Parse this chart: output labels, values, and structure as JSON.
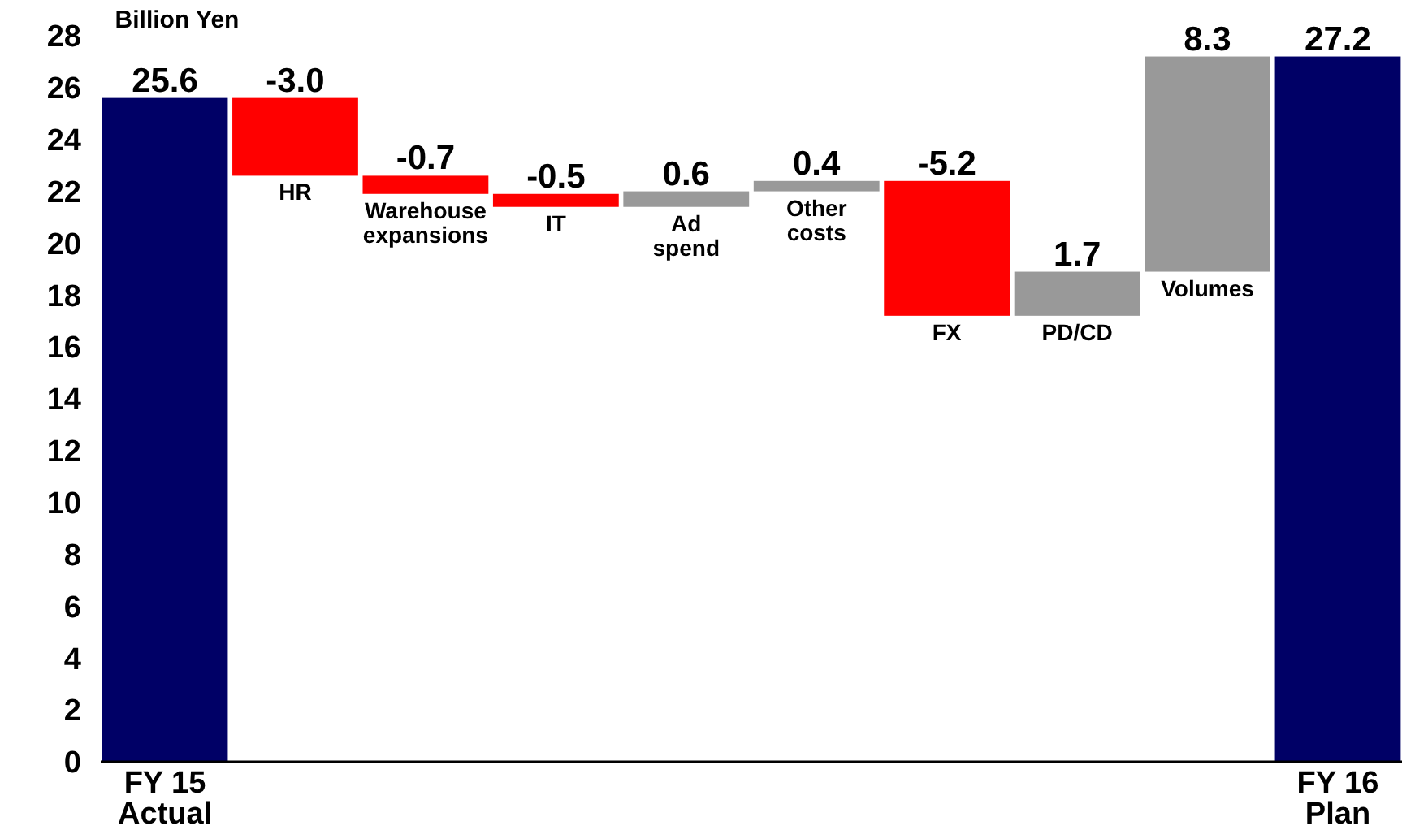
{
  "chart_data": {
    "type": "bar",
    "ylabel": "Billion Yen",
    "categories": [
      "FY 15\nActual",
      "HR",
      "Warehouse\nexpansions",
      "IT",
      "Ad\nspend",
      "Other\ncosts",
      "FX",
      "PD/CD",
      "Volumes",
      "FY 16\nPlan"
    ],
    "values": [
      25.6,
      -3.0,
      -0.7,
      -0.5,
      0.6,
      0.4,
      -5.2,
      1.7,
      8.3,
      27.2
    ],
    "base": [
      0,
      25.6,
      22.6,
      21.9,
      21.4,
      22.0,
      22.4,
      17.2,
      18.9,
      0
    ],
    "colors": [
      "#000066",
      "#ff0000",
      "#ff0000",
      "#ff0000",
      "#999999",
      "#999999",
      "#ff0000",
      "#999999",
      "#999999",
      "#000066"
    ],
    "value_labels": [
      "25.6",
      "-3.0",
      "-0.7",
      "-0.5",
      "0.6",
      "0.4",
      "-5.2",
      "1.7",
      "8.3",
      "27.2"
    ],
    "ylim": [
      0,
      28
    ],
    "yticks": [
      0,
      2,
      4,
      6,
      8,
      10,
      12,
      14,
      16,
      18,
      20,
      22,
      24,
      26,
      28
    ],
    "grid": false
  }
}
